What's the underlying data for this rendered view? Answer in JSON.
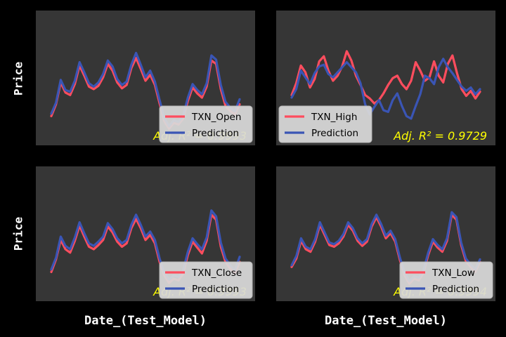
{
  "y_axis_label": "Price",
  "x_axis_label": "Date_(Test_Model)",
  "colors": {
    "figure_background": "#000000",
    "axes_background": "#363636",
    "actual_line": "#ff4d5e",
    "prediction_line": "#3a55b5",
    "r2_text": "#ffff00",
    "legend_background": "#d9d9d9"
  },
  "chart_data": [
    {
      "type": "line",
      "panel": "top-left",
      "legend_placement": "lower-right",
      "grid": false,
      "ticks_visible": false,
      "series": [
        {
          "name": "TXN_Open",
          "values": [
            0.18,
            0.32,
            0.58,
            0.46,
            0.43,
            0.56,
            0.78,
            0.66,
            0.53,
            0.5,
            0.54,
            0.64,
            0.8,
            0.72,
            0.58,
            0.51,
            0.55,
            0.75,
            0.87,
            0.74,
            0.6,
            0.67,
            0.55,
            0.33,
            0.12,
            0.03,
            0.1,
            0.08,
            0.15,
            0.36,
            0.52,
            0.45,
            0.4,
            0.53,
            0.84,
            0.8,
            0.5,
            0.3,
            0.24,
            0.2,
            0.32
          ]
        },
        {
          "name": "Prediction",
          "values": [
            0.21,
            0.34,
            0.61,
            0.49,
            0.47,
            0.6,
            0.82,
            0.7,
            0.57,
            0.53,
            0.58,
            0.68,
            0.84,
            0.77,
            0.62,
            0.55,
            0.59,
            0.79,
            0.93,
            0.79,
            0.64,
            0.72,
            0.59,
            0.37,
            0.16,
            0.06,
            0.13,
            0.11,
            0.18,
            0.4,
            0.56,
            0.49,
            0.44,
            0.57,
            0.9,
            0.85,
            0.55,
            0.35,
            0.28,
            0.24,
            0.38
          ]
        }
      ],
      "annotation": "Adj. R² = 0.9993"
    },
    {
      "type": "line",
      "panel": "top-right",
      "legend_placement": "lower-left",
      "grid": false,
      "ticks_visible": false,
      "series": [
        {
          "name": "TXN_High",
          "values": [
            0.43,
            0.57,
            0.78,
            0.7,
            0.52,
            0.62,
            0.83,
            0.89,
            0.72,
            0.6,
            0.66,
            0.77,
            0.95,
            0.84,
            0.66,
            0.55,
            0.43,
            0.39,
            0.33,
            0.37,
            0.45,
            0.55,
            0.63,
            0.66,
            0.56,
            0.5,
            0.6,
            0.82,
            0.72,
            0.6,
            0.64,
            0.83,
            0.66,
            0.58,
            0.8,
            0.9,
            0.69,
            0.5,
            0.42,
            0.48,
            0.39,
            0.47
          ]
        },
        {
          "name": "Prediction",
          "values": [
            0.4,
            0.5,
            0.72,
            0.64,
            0.56,
            0.69,
            0.77,
            0.79,
            0.68,
            0.64,
            0.7,
            0.76,
            0.82,
            0.76,
            0.7,
            0.57,
            0.32,
            0.2,
            0.29,
            0.37,
            0.25,
            0.23,
            0.37,
            0.45,
            0.3,
            0.18,
            0.15,
            0.3,
            0.44,
            0.66,
            0.63,
            0.56,
            0.76,
            0.86,
            0.76,
            0.69,
            0.61,
            0.53,
            0.48,
            0.52,
            0.44,
            0.5
          ]
        }
      ],
      "annotation": "Adj. R² = 0.9729"
    },
    {
      "type": "line",
      "panel": "bottom-left",
      "legend_placement": "lower-right",
      "grid": false,
      "ticks_visible": false,
      "series": [
        {
          "name": "TXN_Close",
          "values": [
            0.18,
            0.33,
            0.56,
            0.45,
            0.41,
            0.55,
            0.73,
            0.6,
            0.48,
            0.45,
            0.5,
            0.56,
            0.72,
            0.65,
            0.54,
            0.48,
            0.52,
            0.7,
            0.81,
            0.7,
            0.56,
            0.62,
            0.52,
            0.3,
            0.14,
            0.05,
            0.1,
            0.08,
            0.16,
            0.38,
            0.54,
            0.47,
            0.4,
            0.55,
            0.86,
            0.8,
            0.48,
            0.3,
            0.22,
            0.16,
            0.3
          ]
        },
        {
          "name": "Prediction",
          "values": [
            0.21,
            0.35,
            0.6,
            0.49,
            0.45,
            0.59,
            0.77,
            0.64,
            0.52,
            0.49,
            0.54,
            0.6,
            0.76,
            0.69,
            0.58,
            0.52,
            0.56,
            0.74,
            0.86,
            0.74,
            0.6,
            0.66,
            0.56,
            0.34,
            0.17,
            0.09,
            0.14,
            0.12,
            0.2,
            0.42,
            0.58,
            0.51,
            0.45,
            0.59,
            0.91,
            0.84,
            0.53,
            0.34,
            0.26,
            0.2,
            0.36
          ]
        }
      ],
      "annotation": "Adj. R² = 0.9993"
    },
    {
      "type": "line",
      "panel": "bottom-right",
      "legend_placement": "lower-right",
      "grid": false,
      "ticks_visible": false,
      "series": [
        {
          "name": "TXN_Low",
          "values": [
            0.24,
            0.34,
            0.55,
            0.45,
            0.42,
            0.54,
            0.74,
            0.62,
            0.5,
            0.48,
            0.52,
            0.6,
            0.74,
            0.67,
            0.55,
            0.49,
            0.54,
            0.72,
            0.83,
            0.72,
            0.58,
            0.64,
            0.54,
            0.32,
            0.14,
            0.04,
            0.1,
            0.08,
            0.17,
            0.38,
            0.54,
            0.47,
            0.42,
            0.55,
            0.86,
            0.8,
            0.5,
            0.31,
            0.24,
            0.18,
            0.3
          ]
        },
        {
          "name": "Prediction",
          "values": [
            0.26,
            0.37,
            0.58,
            0.48,
            0.45,
            0.57,
            0.77,
            0.65,
            0.53,
            0.51,
            0.55,
            0.63,
            0.77,
            0.7,
            0.58,
            0.52,
            0.57,
            0.75,
            0.86,
            0.75,
            0.61,
            0.67,
            0.57,
            0.35,
            0.17,
            0.07,
            0.13,
            0.11,
            0.2,
            0.41,
            0.57,
            0.5,
            0.45,
            0.58,
            0.89,
            0.83,
            0.53,
            0.34,
            0.27,
            0.21,
            0.33
          ]
        }
      ],
      "annotation": "Adj. R² = 0.9994"
    }
  ]
}
